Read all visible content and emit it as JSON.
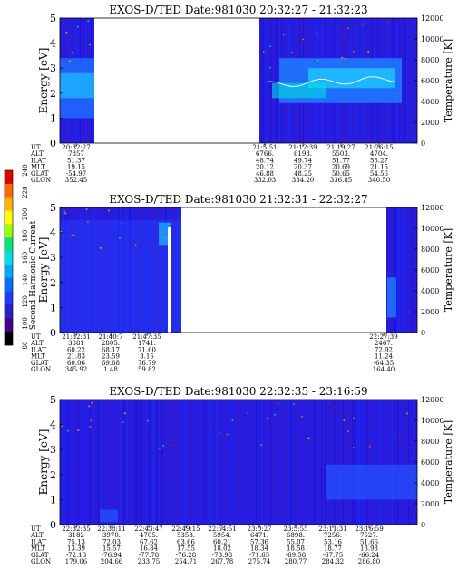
{
  "colorbar": {
    "label": "Second Harmonic Current",
    "ticks": [
      "240",
      "220",
      "200",
      "180",
      "160",
      "140",
      "120",
      "100",
      "80"
    ],
    "colors": [
      "#e00000",
      "#ff6a00",
      "#ffb400",
      "#ffff00",
      "#9cff00",
      "#00e678",
      "#00e0e0",
      "#00a8ff",
      "#0070ff",
      "#1e3cff",
      "#2a20c8",
      "#46008c",
      "#000000"
    ]
  },
  "chart_data": [
    {
      "type": "heatmap",
      "title": "EXOS-D/TED   Date:981030  20:32:27 - 21:32:23",
      "ylabel": "Energy [eV]",
      "y2label": "Temperature [K]",
      "ylim": [
        0,
        5
      ],
      "y2lim": [
        0,
        12000
      ],
      "yticks": [
        "0",
        "1",
        "2",
        "3",
        "4",
        "5"
      ],
      "y2ticks": [
        "0",
        "2000",
        "4000",
        "6000",
        "8000",
        "10000",
        "12000"
      ],
      "orbit_table": {
        "labels": [
          "UT",
          "ALT",
          "ILAT",
          "MLT",
          "GLAT",
          "GLON"
        ],
        "columns": [
          {
            "UT": "20:32:27",
            "ALT": "7857",
            "ILAT": "51.37",
            "MLT": "19.15",
            "GLAT": "-54.97",
            "GLON": "352.45"
          },
          {
            "UT": "21:5:51",
            "ALT": "6766.",
            "ILAT": "48.74",
            "MLT": "20.12",
            "GLAT": "46.88",
            "GLON": "332.03"
          },
          {
            "UT": "21:12:39",
            "ALT": "6193.",
            "ILAT": "49.74",
            "MLT": "20.37",
            "GLAT": "48.25",
            "GLON": "334.20"
          },
          {
            "UT": "21:19:27",
            "ALT": "5503.",
            "ILAT": "51.77",
            "MLT": "20.69",
            "GLAT": "50.65",
            "GLON": "336.85"
          },
          {
            "UT": "21:26:15",
            "ALT": "4704.",
            "ILAT": "55.27",
            "MLT": "21.15",
            "GLAT": "54.56",
            "GLON": "340.50"
          }
        ]
      }
    },
    {
      "type": "heatmap",
      "title": "EXOS-D/TED   Date:981030  21:32:31 - 22:32:27",
      "ylabel": "Energy [eV]",
      "y2label": "Temperature [K]",
      "ylim": [
        0,
        5
      ],
      "y2lim": [
        0,
        12000
      ],
      "yticks": [
        "0",
        "1",
        "2",
        "3",
        "4",
        "5"
      ],
      "y2ticks": [
        "0",
        "2000",
        "4000",
        "6000",
        "8000",
        "10000",
        "12000"
      ],
      "orbit_table": {
        "labels": [
          "UT",
          "ALT",
          "ILAT",
          "MLT",
          "GLAT",
          "GLON"
        ],
        "columns": [
          {
            "UT": "21:32:31",
            "ALT": "3881",
            "ILAT": "60.22",
            "MLT": "21.83",
            "GLAT": "60.06",
            "GLON": "345.92"
          },
          {
            "UT": "21:40:7",
            "ALT": "2805.",
            "ILAT": "68.17",
            "MLT": "23.59",
            "GLAT": "69.68",
            "GLON": "1.48"
          },
          {
            "UT": "21:47:35",
            "ALT": "1741.",
            "ILAT": "71.60",
            "MLT": "3.15",
            "GLAT": "76.79",
            "GLON": "59.82"
          },
          {
            "UT": "22:27:39",
            "ALT": "2467.",
            "ILAT": "72.92",
            "MLT": "11.24",
            "GLAT": "-64.35",
            "GLON": "164.40"
          }
        ]
      }
    },
    {
      "type": "heatmap",
      "title": "EXOS-D/TED   Date:981030  22:32:35 - 23:16:59",
      "ylabel": "Energy [eV]",
      "y2label": "Temperature [K]",
      "ylim": [
        0,
        5
      ],
      "y2lim": [
        0,
        12000
      ],
      "yticks": [
        "0",
        "1",
        "2",
        "3",
        "4",
        "5"
      ],
      "y2ticks": [
        "0",
        "2000",
        "4000",
        "6000",
        "8000",
        "10000",
        "12000"
      ],
      "orbit_table": {
        "labels": [
          "UT",
          "ALT",
          "ILAT",
          "MLT",
          "GLAT",
          "GLON"
        ],
        "columns": [
          {
            "UT": "22:32:35",
            "ALT": "3182",
            "ILAT": "75.13",
            "MLT": "13.39",
            "GLAT": "-72.13",
            "GLON": "179.06"
          },
          {
            "UT": "22:38:11",
            "ALT": "3970.",
            "ILAT": "72.03",
            "MLT": "15.57",
            "GLAT": "-76.94",
            "GLON": "204.66"
          },
          {
            "UT": "22:43:47",
            "ALT": "4705.",
            "ILAT": "67.62",
            "MLT": "16.84",
            "GLAT": "-77.78",
            "GLON": "233.75"
          },
          {
            "UT": "22:49:15",
            "ALT": "5358.",
            "ILAT": "63.66",
            "MLT": "17.55",
            "GLAT": "-76.28",
            "GLON": "254.71"
          },
          {
            "UT": "22:54:51",
            "ALT": "5954.",
            "ILAT": "60.21",
            "MLT": "18.02",
            "GLAT": "-73.98",
            "GLON": "267.78"
          },
          {
            "UT": "23:0:27",
            "ALT": "6471.",
            "ILAT": "57.36",
            "MLT": "18.34",
            "GLAT": "-71.65",
            "GLON": "275.74"
          },
          {
            "UT": "23:5:55",
            "ALT": "6898.",
            "ILAT": "55.07",
            "MLT": "18.58",
            "GLAT": "-69.58",
            "GLON": "280.77"
          },
          {
            "UT": "23:11:31",
            "ALT": "7256.",
            "ILAT": "53.16",
            "MLT": "18.77",
            "GLAT": "-67.75",
            "GLON": "284.32"
          },
          {
            "UT": "23:16:59",
            "ALT": "7527.",
            "ILAT": "51.66",
            "MLT": "18.93",
            "GLAT": "-66.24",
            "GLON": "286.80"
          }
        ]
      }
    }
  ]
}
